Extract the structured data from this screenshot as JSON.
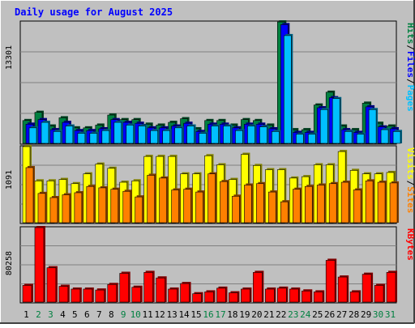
{
  "chart_data": [
    {
      "type": "bar",
      "title": "Daily usage for August 2025",
      "ylabel_max": "13301",
      "ylim": [
        0,
        13301
      ],
      "legend": [
        {
          "label": "Hits",
          "color": "#008040"
        },
        {
          "label": "Files",
          "color": "#0000ff"
        },
        {
          "label": "Pages",
          "color": "#00c0ff"
        }
      ],
      "separator": "/",
      "categories": [
        "1",
        "2",
        "3",
        "4",
        "5",
        "6",
        "7",
        "8",
        "9",
        "10",
        "11",
        "12",
        "13",
        "14",
        "15",
        "16",
        "17",
        "18",
        "19",
        "20",
        "21",
        "22",
        "23",
        "24",
        "25",
        "26",
        "27",
        "28",
        "29",
        "30",
        "31"
      ],
      "weekend_days": [
        "2",
        "3",
        "9",
        "10",
        "16",
        "17",
        "23",
        "24",
        "30",
        "31"
      ],
      "series": [
        {
          "name": "Hits",
          "values": [
            2500,
            3400,
            1900,
            2800,
            1700,
            1700,
            2000,
            3100,
            2600,
            2600,
            2100,
            2000,
            2300,
            2700,
            1600,
            2500,
            2500,
            2000,
            2600,
            2500,
            2000,
            13300,
            1500,
            1500,
            4200,
            5600,
            1900,
            1500,
            4400,
            2200,
            1900
          ]
        },
        {
          "name": "Files",
          "values": [
            2100,
            2600,
            1500,
            2300,
            1400,
            1400,
            1600,
            2600,
            2300,
            2200,
            1700,
            1700,
            1900,
            2200,
            1300,
            2100,
            2100,
            1700,
            2100,
            2100,
            1600,
            13000,
            1200,
            1200,
            3900,
            5000,
            1500,
            1200,
            4000,
            1800,
            1600
          ]
        },
        {
          "name": "Pages",
          "values": [
            1700,
            2300,
            1300,
            1900,
            1100,
            1100,
            1400,
            2300,
            2000,
            1900,
            1400,
            1400,
            1700,
            1900,
            1100,
            1900,
            1900,
            1400,
            1900,
            1800,
            1300,
            11800,
            1000,
            1000,
            3700,
            4900,
            1300,
            1000,
            3700,
            1500,
            1300
          ]
        }
      ]
    },
    {
      "type": "bar",
      "ylabel_max": "1091",
      "ylim": [
        0,
        1091
      ],
      "legend": [
        {
          "label": "Visits",
          "color": "#ffff00"
        },
        {
          "label": "Sites",
          "color": "#ff8000"
        }
      ],
      "separator": "/",
      "categories": [
        "1",
        "2",
        "3",
        "4",
        "5",
        "6",
        "7",
        "8",
        "9",
        "10",
        "11",
        "12",
        "13",
        "14",
        "15",
        "16",
        "17",
        "18",
        "19",
        "20",
        "21",
        "22",
        "23",
        "24",
        "25",
        "26",
        "27",
        "28",
        "29",
        "30",
        "31"
      ],
      "series": [
        {
          "name": "Visits",
          "values": [
            1091,
            600,
            600,
            620,
            560,
            700,
            840,
            780,
            580,
            600,
            950,
            950,
            950,
            700,
            700,
            960,
            830,
            620,
            980,
            820,
            760,
            760,
            640,
            660,
            830,
            830,
            1020,
            750,
            700,
            700,
            720
          ]
        },
        {
          "name": "Sites",
          "values": [
            790,
            420,
            360,
            400,
            430,
            520,
            500,
            480,
            450,
            370,
            680,
            640,
            470,
            480,
            440,
            700,
            590,
            380,
            540,
            560,
            440,
            300,
            480,
            520,
            540,
            560,
            580,
            470,
            600,
            580,
            570
          ]
        }
      ]
    },
    {
      "type": "bar",
      "ylabel_max": "80258",
      "ylim": [
        0,
        80258
      ],
      "legend": [
        {
          "label": "KBytes",
          "color": "#ff0000"
        }
      ],
      "categories": [
        "1",
        "2",
        "3",
        "4",
        "5",
        "6",
        "7",
        "8",
        "9",
        "10",
        "11",
        "12",
        "13",
        "14",
        "15",
        "16",
        "17",
        "18",
        "19",
        "20",
        "21",
        "22",
        "23",
        "24",
        "25",
        "26",
        "27",
        "28",
        "29",
        "30",
        "31"
      ],
      "series": [
        {
          "name": "KBytes",
          "values": [
            18000,
            80258,
            37000,
            17000,
            14000,
            14000,
            13000,
            19000,
            31000,
            16000,
            32000,
            26000,
            14000,
            20000,
            9000,
            11000,
            15000,
            10000,
            14000,
            32000,
            14000,
            15000,
            14000,
            12000,
            11000,
            45000,
            27000,
            11000,
            30000,
            18000,
            32000
          ]
        }
      ]
    }
  ],
  "colors": {
    "page_bg": "#c0c0c0",
    "plot_bg": "#c0c0c0",
    "frame_dark": "#000000",
    "title_color": "#0000ff",
    "weekday_label": "#000000",
    "weekend_label": "#008040",
    "grid": "#808080",
    "bar_outline": "#000000"
  }
}
